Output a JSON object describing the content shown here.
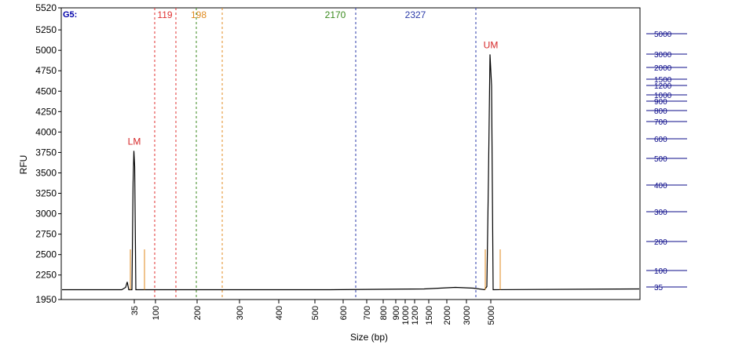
{
  "chart_data": {
    "type": "line",
    "title": "",
    "corner_label": "G5:",
    "xlabel": "Size (bp)",
    "ylabel": "RFU",
    "ylim": [
      1950,
      5520
    ],
    "y_ticks": [
      1950,
      2250,
      2500,
      2750,
      3000,
      3250,
      3500,
      3750,
      4000,
      4250,
      4500,
      4750,
      5000,
      5250,
      5520
    ],
    "x_ticks": [
      "35",
      "100",
      "200",
      "300",
      "400",
      "500",
      "600",
      "700",
      "800",
      "900",
      "1000",
      "1200",
      "1500",
      "2000",
      "3000",
      "5000"
    ],
    "ladder_ticks": [
      "35",
      "100",
      "200",
      "300",
      "400",
      "500",
      "600",
      "700",
      "800",
      "900",
      "1000",
      "1200",
      "1500",
      "2000",
      "3000",
      "5000"
    ],
    "markers": [
      {
        "label": "LM",
        "x": "35",
        "color": "#d62728"
      },
      {
        "label": "UM",
        "x": "5000",
        "color": "#d62728"
      }
    ],
    "regions": [
      {
        "label": "119",
        "color": "#e03030"
      },
      {
        "label": "198",
        "color": "#e08a1e"
      },
      {
        "label": "2170",
        "color": "#3a8a1e"
      },
      {
        "label": "2327",
        "color": "#2a3aa8"
      }
    ],
    "series": [
      {
        "color": "#000000",
        "x": [
          "35",
          "100",
          "200",
          "300",
          "500",
          "1000",
          "2000",
          "3000",
          "5000"
        ],
        "values": [
          3770,
          2070,
          2075,
          2072,
          2078,
          2085,
          2095,
          2098,
          4950
        ]
      }
    ]
  }
}
